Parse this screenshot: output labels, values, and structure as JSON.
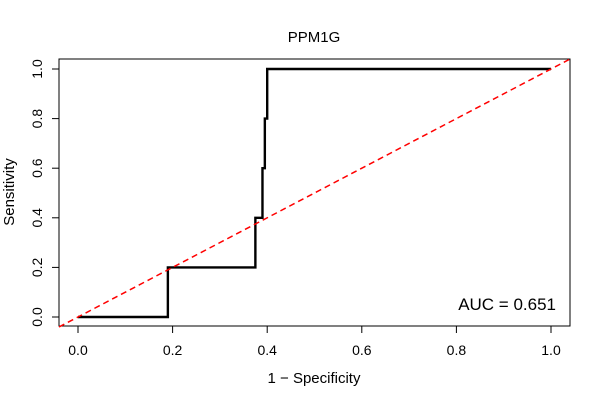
{
  "chart_data": {
    "type": "line",
    "title": "PPM1G",
    "xlabel": "1 − Specificity",
    "ylabel": "Sensitivity",
    "xlim": [
      0,
      1
    ],
    "ylim": [
      0,
      1
    ],
    "x_ticks": [
      "0.0",
      "0.2",
      "0.4",
      "0.6",
      "0.8",
      "1.0"
    ],
    "y_ticks": [
      "0.0",
      "0.2",
      "0.4",
      "0.6",
      "0.8",
      "1.0"
    ],
    "grid": false,
    "annotation": "AUC = 0.651",
    "series": [
      {
        "color": "#000000",
        "style": "solid",
        "x": [
          0.0,
          0.19,
          0.19,
          0.375,
          0.375,
          0.39,
          0.39,
          0.395,
          0.395,
          0.4,
          0.4,
          1.0
        ],
        "y": [
          0.0,
          0.0,
          0.2,
          0.2,
          0.4,
          0.4,
          0.6,
          0.6,
          0.8,
          0.8,
          1.0,
          1.0
        ]
      },
      {
        "color": "#ff0000",
        "style": "dashed",
        "x": [
          0.0,
          1.0
        ],
        "y": [
          0.0,
          1.0
        ]
      }
    ]
  }
}
